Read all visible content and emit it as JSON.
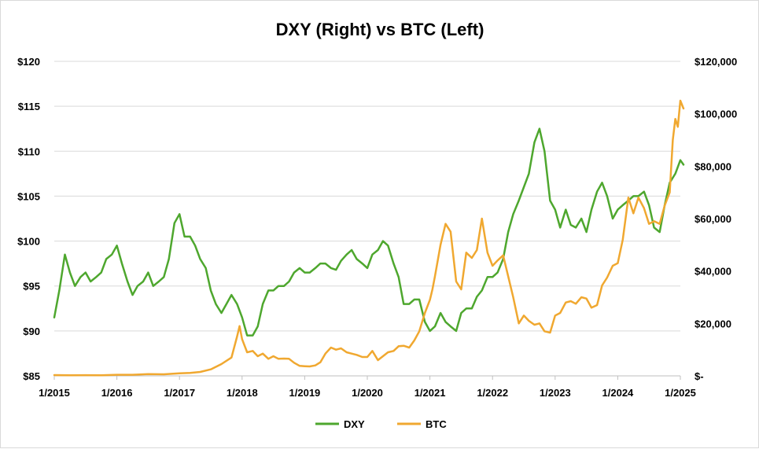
{
  "chart_data": {
    "type": "line",
    "title": "DXY (Right) vs BTC (Left)",
    "x_tick_labels": [
      "1/2015",
      "1/2016",
      "1/2017",
      "1/2018",
      "1/2019",
      "1/2020",
      "1/2021",
      "1/2022",
      "1/2023",
      "1/2024",
      "1/2025"
    ],
    "left_axis": {
      "tick_labels": [
        "$85",
        "$90",
        "$95",
        "$100",
        "$105",
        "$110",
        "$115",
        "$120"
      ],
      "ylim": [
        85,
        120
      ]
    },
    "right_axis": {
      "tick_labels": [
        "$-",
        "$20,000",
        "$40,000",
        "$60,000",
        "$80,000",
        "$100,000",
        "$120,000"
      ],
      "ylim": [
        0,
        120000
      ]
    },
    "grid": true,
    "legend_position": "bottom",
    "series": [
      {
        "name": "DXY",
        "color": "#4ea72e",
        "x": [
          2015.0,
          2015.08,
          2015.17,
          2015.25,
          2015.33,
          2015.42,
          2015.5,
          2015.58,
          2015.67,
          2015.75,
          2015.83,
          2015.92,
          2016.0,
          2016.08,
          2016.17,
          2016.25,
          2016.33,
          2016.42,
          2016.5,
          2016.58,
          2016.67,
          2016.75,
          2016.83,
          2016.92,
          2017.0,
          2017.08,
          2017.17,
          2017.25,
          2017.33,
          2017.42,
          2017.5,
          2017.58,
          2017.67,
          2017.75,
          2017.83,
          2017.92,
          2018.0,
          2018.08,
          2018.17,
          2018.25,
          2018.33,
          2018.42,
          2018.5,
          2018.58,
          2018.67,
          2018.75,
          2018.83,
          2018.92,
          2019.0,
          2019.08,
          2019.17,
          2019.25,
          2019.33,
          2019.42,
          2019.5,
          2019.58,
          2019.67,
          2019.75,
          2019.83,
          2019.92,
          2020.0,
          2020.08,
          2020.17,
          2020.25,
          2020.33,
          2020.42,
          2020.5,
          2020.58,
          2020.67,
          2020.75,
          2020.83,
          2020.92,
          2021.0,
          2021.08,
          2021.17,
          2021.25,
          2021.33,
          2021.42,
          2021.5,
          2021.58,
          2021.67,
          2021.75,
          2021.83,
          2021.92,
          2022.0,
          2022.08,
          2022.17,
          2022.25,
          2022.33,
          2022.42,
          2022.5,
          2022.58,
          2022.67,
          2022.75,
          2022.83,
          2022.92,
          2023.0,
          2023.08,
          2023.17,
          2023.25,
          2023.33,
          2023.42,
          2023.5,
          2023.58,
          2023.67,
          2023.75,
          2023.83,
          2023.92,
          2024.0,
          2024.08,
          2024.17,
          2024.25,
          2024.33,
          2024.42,
          2024.5,
          2024.58,
          2024.67,
          2024.75,
          2024.83,
          2024.92,
          2025.0,
          2025.05
        ],
        "y": [
          91.5,
          94.5,
          98.5,
          96.5,
          95.0,
          96.0,
          96.5,
          95.5,
          96.0,
          96.5,
          98.0,
          98.5,
          99.5,
          97.5,
          95.5,
          94.0,
          95.0,
          95.5,
          96.5,
          95.0,
          95.5,
          96.0,
          98.0,
          102.0,
          103.0,
          100.5,
          100.5,
          99.5,
          98.0,
          97.0,
          94.5,
          93.0,
          92.0,
          93.0,
          94.0,
          93.0,
          91.5,
          89.5,
          89.5,
          90.5,
          93.0,
          94.5,
          94.5,
          95.0,
          95.0,
          95.5,
          96.5,
          97.0,
          96.5,
          96.5,
          97.0,
          97.5,
          97.5,
          97.0,
          96.8,
          97.8,
          98.5,
          99.0,
          98.0,
          97.5,
          97.0,
          98.5,
          99.0,
          100.0,
          99.5,
          97.5,
          96.0,
          93.0,
          93.0,
          93.5,
          93.5,
          91.0,
          90.0,
          90.5,
          92.0,
          91.0,
          90.5,
          90.0,
          92.0,
          92.5,
          92.5,
          93.8,
          94.5,
          96.0,
          96.0,
          96.5,
          98.0,
          101.0,
          103.0,
          104.5,
          106.0,
          107.5,
          111.0,
          112.5,
          110.0,
          104.5,
          103.5,
          101.5,
          103.5,
          101.8,
          101.5,
          102.5,
          101.0,
          103.5,
          105.5,
          106.5,
          105.0,
          102.5,
          103.5,
          104.0,
          104.5,
          105.0,
          105.0,
          105.5,
          104.0,
          101.5,
          101.0,
          104.0,
          106.5,
          107.5,
          109.0,
          108.5
        ]
      },
      {
        "name": "BTC",
        "color": "#f0a830",
        "x": [
          2015.0,
          2015.25,
          2015.5,
          2015.75,
          2016.0,
          2016.25,
          2016.5,
          2016.75,
          2017.0,
          2017.17,
          2017.33,
          2017.5,
          2017.67,
          2017.83,
          2017.92,
          2017.96,
          2018.0,
          2018.08,
          2018.17,
          2018.25,
          2018.33,
          2018.42,
          2018.5,
          2018.58,
          2018.67,
          2018.75,
          2018.83,
          2018.92,
          2019.0,
          2019.08,
          2019.17,
          2019.25,
          2019.33,
          2019.42,
          2019.5,
          2019.58,
          2019.67,
          2019.75,
          2019.83,
          2019.92,
          2020.0,
          2020.08,
          2020.17,
          2020.25,
          2020.33,
          2020.42,
          2020.5,
          2020.58,
          2020.67,
          2020.75,
          2020.83,
          2020.92,
          2021.0,
          2021.04,
          2021.08,
          2021.17,
          2021.25,
          2021.33,
          2021.42,
          2021.5,
          2021.58,
          2021.67,
          2021.75,
          2021.83,
          2021.92,
          2022.0,
          2022.08,
          2022.17,
          2022.25,
          2022.33,
          2022.42,
          2022.5,
          2022.58,
          2022.67,
          2022.75,
          2022.83,
          2022.92,
          2023.0,
          2023.08,
          2023.17,
          2023.25,
          2023.33,
          2023.42,
          2023.5,
          2023.58,
          2023.67,
          2023.75,
          2023.83,
          2023.92,
          2024.0,
          2024.08,
          2024.17,
          2024.25,
          2024.33,
          2024.42,
          2024.5,
          2024.58,
          2024.67,
          2024.75,
          2024.83,
          2024.88,
          2024.92,
          2024.96,
          2025.0,
          2025.05
        ],
        "y": [
          300,
          250,
          280,
          250,
          430,
          420,
          650,
          610,
          1000,
          1150,
          1500,
          2500,
          4500,
          7000,
          15000,
          19000,
          14000,
          9000,
          9500,
          7500,
          8500,
          6500,
          7500,
          6500,
          6600,
          6500,
          5000,
          3800,
          3700,
          3600,
          4000,
          5200,
          8500,
          10800,
          10000,
          10500,
          9000,
          8500,
          8000,
          7200,
          7200,
          9500,
          6000,
          7500,
          9000,
          9500,
          11300,
          11500,
          10800,
          13500,
          17000,
          24000,
          29000,
          33000,
          38000,
          50000,
          58000,
          55000,
          36000,
          33000,
          47000,
          45000,
          48000,
          60000,
          47000,
          42000,
          44000,
          46000,
          38000,
          30000,
          20000,
          23000,
          21000,
          19500,
          20000,
          17000,
          16500,
          23000,
          24000,
          28000,
          28500,
          27500,
          30000,
          29500,
          26000,
          27000,
          34500,
          37500,
          42000,
          43000,
          52000,
          68000,
          62000,
          68000,
          64000,
          58000,
          59000,
          58000,
          65000,
          70000,
          90000,
          98000,
          95000,
          105000,
          102000
        ]
      }
    ]
  },
  "legend": {
    "dxy_label": "DXY",
    "btc_label": "BTC"
  }
}
